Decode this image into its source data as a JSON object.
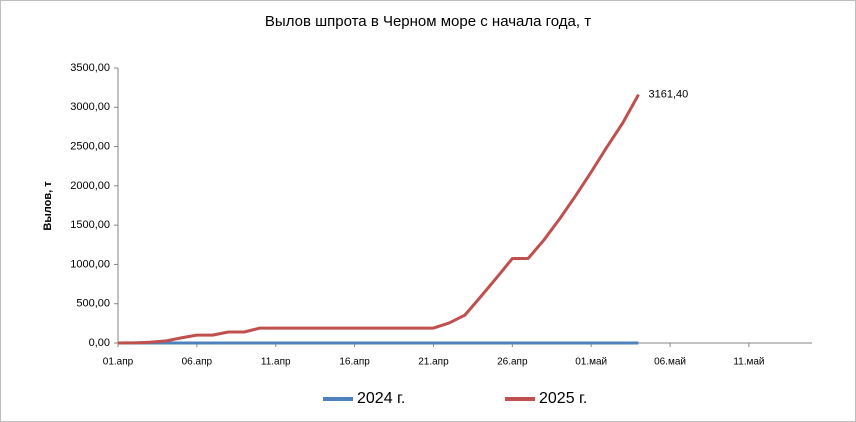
{
  "chart_data": {
    "type": "line",
    "title": "Вылов шпрота в Черном море с начала года, т",
    "y_label": "Вылов, т",
    "categories": [
      "01.апр",
      null,
      null,
      null,
      null,
      "06.апр",
      null,
      null,
      null,
      null,
      "11.апр",
      null,
      null,
      null,
      null,
      "16.апр",
      null,
      null,
      null,
      null,
      "21.апр",
      null,
      null,
      null,
      null,
      "26.апр",
      null,
      null,
      null,
      null,
      "01.май",
      null,
      null,
      null,
      null,
      "06.май",
      null,
      null,
      null,
      null,
      "11.май",
      null,
      null,
      null,
      null
    ],
    "series": [
      {
        "name": "2024 г.",
        "color": "#4f81bd",
        "values": [
          0,
          0,
          0,
          0,
          0,
          0,
          0,
          0,
          0,
          0,
          0,
          0,
          0,
          0,
          0,
          0,
          0,
          0,
          0,
          0,
          0,
          0,
          0,
          0,
          0,
          0,
          0,
          0,
          0,
          0,
          0,
          0,
          0,
          0,
          null,
          null,
          null,
          null,
          null,
          null,
          null,
          null,
          null,
          null,
          null
        ]
      },
      {
        "name": "2025 г.",
        "color": "#c0504d",
        "values": [
          0,
          2,
          10,
          25,
          65,
          100,
          100,
          140,
          140,
          190,
          190,
          190,
          190,
          190,
          190,
          190,
          190,
          190,
          190,
          190,
          190,
          255,
          356,
          590,
          830,
          1075,
          1075,
          1310,
          1580,
          1870,
          2175,
          2495,
          2800,
          3161.4,
          null,
          null,
          null,
          null,
          null,
          null,
          null,
          null,
          null,
          null,
          null
        ],
        "value_labels": [
          null,
          null,
          null,
          null,
          null,
          null,
          null,
          null,
          null,
          null,
          null,
          null,
          null,
          null,
          null,
          null,
          null,
          null,
          null,
          null,
          null,
          null,
          null,
          null,
          null,
          null,
          null,
          null,
          null,
          null,
          null,
          null,
          null,
          "3161,40",
          null,
          null,
          null,
          null,
          null,
          null,
          null,
          null,
          null,
          null,
          null
        ]
      }
    ],
    "ylim": [
      0,
      3500
    ],
    "yticks": [
      {
        "value": 0,
        "label": "0,00"
      },
      {
        "value": 500,
        "label": "500,00"
      },
      {
        "value": 1000,
        "label": "1000,00"
      },
      {
        "value": 1500,
        "label": "1500,00"
      },
      {
        "value": 2000,
        "label": "2000,00"
      },
      {
        "value": 2500,
        "label": "2500,00"
      },
      {
        "value": 3000,
        "label": "3000,00"
      },
      {
        "value": 3500,
        "label": "3500,00"
      }
    ],
    "legend": "bottom"
  }
}
